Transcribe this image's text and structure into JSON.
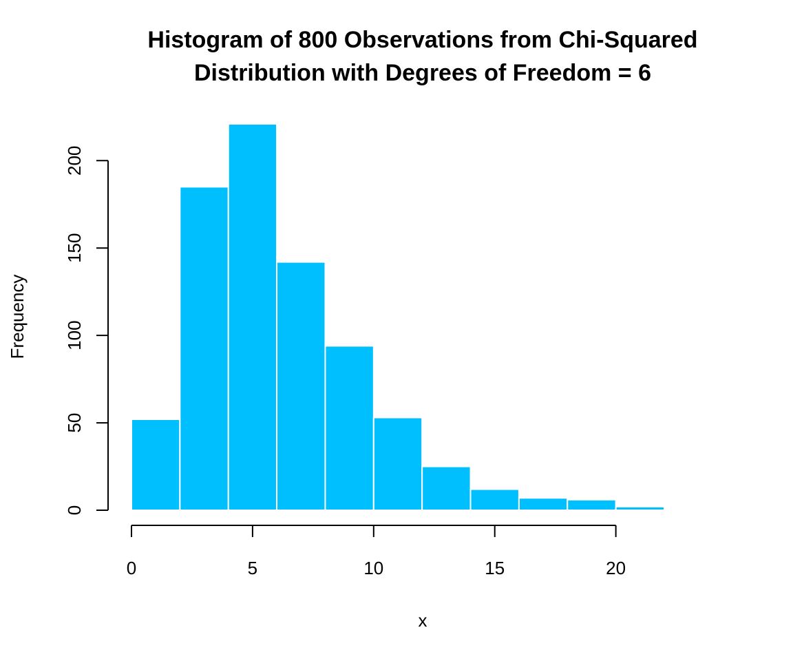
{
  "chart_data": {
    "type": "bar",
    "title_lines": [
      "Histogram of 800 Observations from Chi-Squared",
      "Distribution with Degrees of Freedom = 6"
    ],
    "xlabel": "x",
    "ylabel": "Frequency",
    "bin_edges": [
      0,
      2,
      4,
      6,
      8,
      10,
      12,
      14,
      16,
      18,
      20,
      22
    ],
    "values": [
      52,
      185,
      221,
      142,
      94,
      53,
      25,
      12,
      7,
      6,
      2
    ],
    "xlim": [
      0,
      22
    ],
    "ylim": [
      0,
      221
    ],
    "x_ticks": [
      0,
      5,
      10,
      15,
      20
    ],
    "x_tick_labels": [
      "0",
      "5",
      "10",
      "15",
      "20"
    ],
    "y_ticks": [
      0,
      50,
      100,
      150,
      200
    ],
    "y_tick_labels": [
      "0",
      "50",
      "100",
      "150",
      "200"
    ],
    "bar_color": "#00BFFF",
    "grid": false,
    "legend": "none"
  }
}
